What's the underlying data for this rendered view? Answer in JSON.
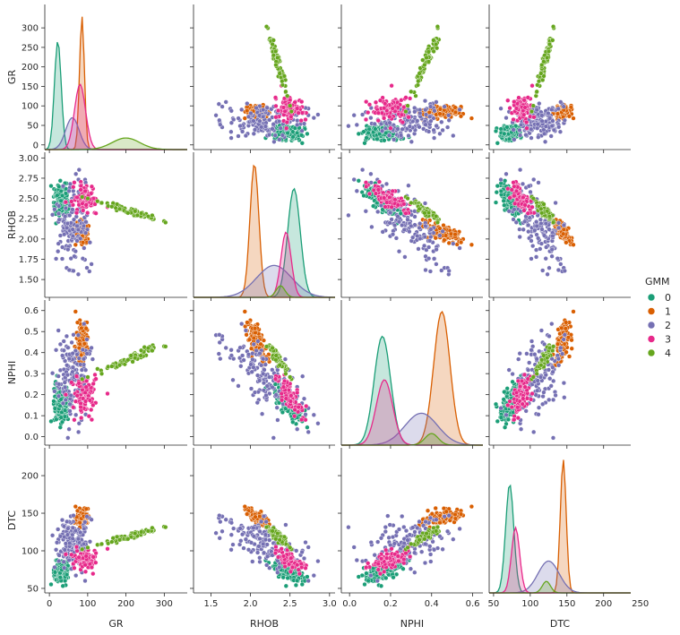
{
  "chart_data": {
    "type": "scatter",
    "kind": "pairplot",
    "variables": [
      "GR",
      "RHOB",
      "NPHI",
      "DTC"
    ],
    "axis_limits": {
      "GR": [
        -12,
        360
      ],
      "RHOB": [
        1.28,
        3.07
      ],
      "NPHI": [
        -0.04,
        0.65
      ],
      "DTC": [
        44,
        237
      ]
    },
    "ticks": {
      "GR": [
        0,
        50,
        100,
        150,
        200,
        250,
        300
      ],
      "GR_bottom": [
        0,
        100,
        200,
        300
      ],
      "RHOB": [
        1.5,
        1.75,
        2.0,
        2.25,
        2.5,
        2.75,
        3.0
      ],
      "RHOB_bottom": [
        1.5,
        2.0,
        2.5,
        3.0
      ],
      "NPHI": [
        0.0,
        0.1,
        0.2,
        0.3,
        0.4,
        0.5,
        0.6
      ],
      "NPHI_bottom": [
        0.0,
        0.2,
        0.4,
        0.6
      ],
      "DTC": [
        50,
        100,
        150,
        200
      ],
      "DTC_bottom": [
        50,
        100,
        150,
        200,
        250
      ]
    },
    "tick_labels": {
      "GR": [
        "0",
        "50",
        "100",
        "150",
        "200",
        "250",
        "300"
      ],
      "GR_bottom": [
        "0",
        "100",
        "200",
        "300"
      ],
      "RHOB": [
        "1.50",
        "1.75",
        "2.00",
        "2.25",
        "2.50",
        "2.75",
        "3.00"
      ],
      "RHOB_bottom": [
        "1.5",
        "2.0",
        "2.5",
        "3.0"
      ],
      "NPHI": [
        "0.0",
        "0.1",
        "0.2",
        "0.3",
        "0.4",
        "0.5",
        "0.6"
      ],
      "NPHI_bottom": [
        "0.0",
        "0.2",
        "0.4",
        "0.6"
      ],
      "DTC": [
        "50",
        "100",
        "150",
        "200"
      ],
      "DTC_bottom": [
        "50",
        "100",
        "150",
        "200",
        "250"
      ]
    },
    "legend": {
      "title": "GMM",
      "entries": [
        "0",
        "1",
        "2",
        "3",
        "4"
      ],
      "position": "right"
    },
    "series": [
      {
        "name": "0",
        "color": "#1b9e77",
        "mean": {
          "GR": 30,
          "RHOB": 2.47,
          "NPHI": 0.16,
          "DTC": 72
        },
        "sd": {
          "GR": 11,
          "RHOB": 0.1,
          "NPHI": 0.05,
          "DTC": 7
        },
        "peak": {
          "GR": 22,
          "RHOB": 2.55,
          "NPHI": 0.16,
          "DTC": 72
        }
      },
      {
        "name": "1",
        "color": "#d95f02",
        "mean": {
          "GR": 85,
          "RHOB": 2.08,
          "NPHI": 0.45,
          "DTC": 145
        },
        "sd": {
          "GR": 8,
          "RHOB": 0.07,
          "NPHI": 0.05,
          "DTC": 5
        },
        "peak": {
          "GR": 85,
          "RHOB": 2.05,
          "NPHI": 0.45,
          "DTC": 145
        }
      },
      {
        "name": "2",
        "color": "#7570b3",
        "mean": {
          "GR": 60,
          "RHOB": 2.15,
          "NPHI": 0.3,
          "DTC": 110
        },
        "sd": {
          "GR": 22,
          "RHOB": 0.28,
          "NPHI": 0.1,
          "DTC": 18
        },
        "peak": {
          "GR": 60,
          "RHOB": 2.3,
          "NPHI": 0.35,
          "DTC": 125
        }
      },
      {
        "name": "3",
        "color": "#e7298a",
        "mean": {
          "GR": 90,
          "RHOB": 2.5,
          "NPHI": 0.2,
          "DTC": 88
        },
        "sd": {
          "GR": 18,
          "RHOB": 0.08,
          "NPHI": 0.05,
          "DTC": 7
        },
        "peak": {
          "GR": 80,
          "RHOB": 2.45,
          "NPHI": 0.17,
          "DTC": 80
        }
      },
      {
        "name": "4",
        "color": "#66a61e",
        "mean": {
          "GR": 210,
          "RHOB": 2.35,
          "NPHI": 0.37,
          "DTC": 120
        },
        "sd": {
          "GR": 45,
          "RHOB": 0.07,
          "NPHI": 0.04,
          "DTC": 7
        },
        "peak": {
          "GR": 200,
          "RHOB": 2.38,
          "NPHI": 0.4,
          "DTC": 122
        }
      }
    ]
  }
}
